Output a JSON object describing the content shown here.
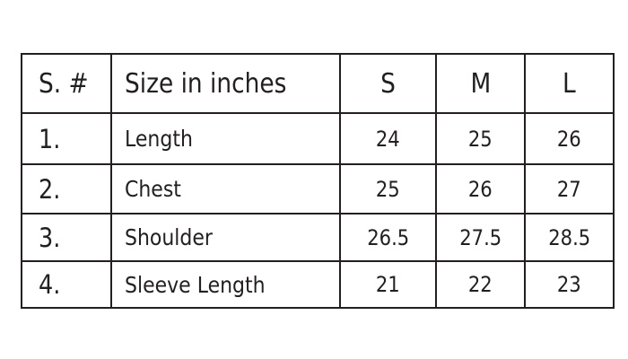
{
  "table": {
    "headers": [
      "S. #",
      "Size in inches",
      "S",
      "M",
      "L"
    ],
    "rows": [
      {
        "num": "1.",
        "label": "Length",
        "values": [
          "24",
          "25",
          "26"
        ]
      },
      {
        "num": "2.",
        "label": "Chest",
        "values": [
          "25",
          "26",
          "27"
        ]
      },
      {
        "num": "3.",
        "label": "Shoulder",
        "values": [
          "26.5",
          "27.5",
          "28.5"
        ]
      },
      {
        "num": "4.",
        "label": "Sleeve Length",
        "values": [
          "21",
          "22",
          "23"
        ]
      }
    ]
  }
}
